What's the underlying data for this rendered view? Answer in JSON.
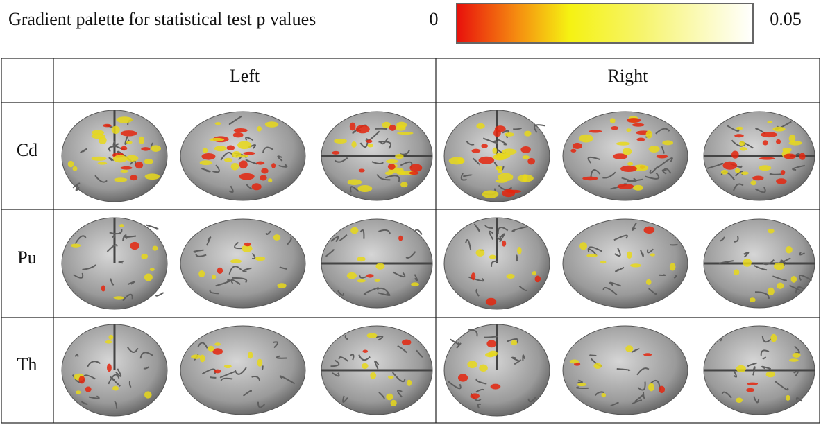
{
  "header": {
    "title": "Gradient palette for statistical test p values",
    "scale_min": 0,
    "scale_max": 0.05
  },
  "table": {
    "columns": [
      "Left",
      "Right"
    ],
    "rows": [
      "Cd",
      "Pu",
      "Th"
    ]
  }
}
